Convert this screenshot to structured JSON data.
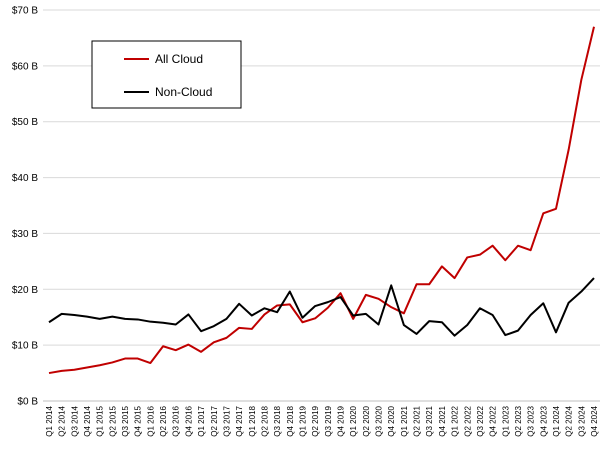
{
  "chart_data": {
    "type": "line",
    "title": "",
    "xlabel": "",
    "ylabel": "",
    "ylim": [
      0,
      70
    ],
    "grid": "horizontal",
    "legend_position": "top-left-inside",
    "y_ticks": [
      {
        "value": 0,
        "label": "$0 B"
      },
      {
        "value": 10,
        "label": "$10 B"
      },
      {
        "value": 20,
        "label": "$20 B"
      },
      {
        "value": 30,
        "label": "$30 B"
      },
      {
        "value": 40,
        "label": "$40 B"
      },
      {
        "value": 50,
        "label": "$50 B"
      },
      {
        "value": 60,
        "label": "$60 B"
      },
      {
        "value": 70,
        "label": "$70 B"
      }
    ],
    "categories": [
      "Q1 2014",
      "Q2 2014",
      "Q3 2014",
      "Q4 2014",
      "Q1 2015",
      "Q2 2015",
      "Q3 2015",
      "Q4 2015",
      "Q1 2016",
      "Q2 2016",
      "Q3 2016",
      "Q4 2016",
      "Q1 2017",
      "Q2 2017",
      "Q3 2017",
      "Q4 2017",
      "Q1 2018",
      "Q2 2018",
      "Q3 2018",
      "Q4 2018",
      "Q1 2019",
      "Q2 2019",
      "Q3 2019",
      "Q4 2019",
      "Q1 2020",
      "Q2 2020",
      "Q3 2020",
      "Q4 2020",
      "Q1 2021",
      "Q2 2021",
      "Q3 2021",
      "Q4 2021",
      "Q1 2022",
      "Q2 2022",
      "Q3 2022",
      "Q4 2022",
      "Q1 2023",
      "Q2 2023",
      "Q3 2023",
      "Q4 2023",
      "Q1 2024",
      "Q2 2024",
      "Q3 2024",
      "Q4 2024"
    ],
    "series": [
      {
        "name": "All Cloud",
        "color": "#c00000",
        "values": [
          5.0,
          5.4,
          5.6,
          6.0,
          6.4,
          6.9,
          7.6,
          7.6,
          6.8,
          9.8,
          9.1,
          10.1,
          8.8,
          10.5,
          11.3,
          13.1,
          12.9,
          15.5,
          17.1,
          17.3,
          14.1,
          14.8,
          16.7,
          19.3,
          14.7,
          19.0,
          18.3,
          16.8,
          15.7,
          20.9,
          20.9,
          24.1,
          22.0,
          25.7,
          26.2,
          27.8,
          25.2,
          27.8,
          27.0,
          33.6,
          34.4,
          45.0,
          57.5,
          67.0
        ]
      },
      {
        "name": "Non-Cloud",
        "color": "#000000",
        "values": [
          14.1,
          15.6,
          15.4,
          15.1,
          14.7,
          15.1,
          14.7,
          14.6,
          14.2,
          14.0,
          13.7,
          15.5,
          12.5,
          13.4,
          14.7,
          17.4,
          15.3,
          16.6,
          15.9,
          19.6,
          14.9,
          17.0,
          17.7,
          18.6,
          15.3,
          15.6,
          13.7,
          20.7,
          13.6,
          12.0,
          14.3,
          14.1,
          11.7,
          13.6,
          16.6,
          15.4,
          11.8,
          12.6,
          15.4,
          17.5,
          12.3,
          17.6,
          19.6,
          22.0
        ]
      }
    ]
  }
}
